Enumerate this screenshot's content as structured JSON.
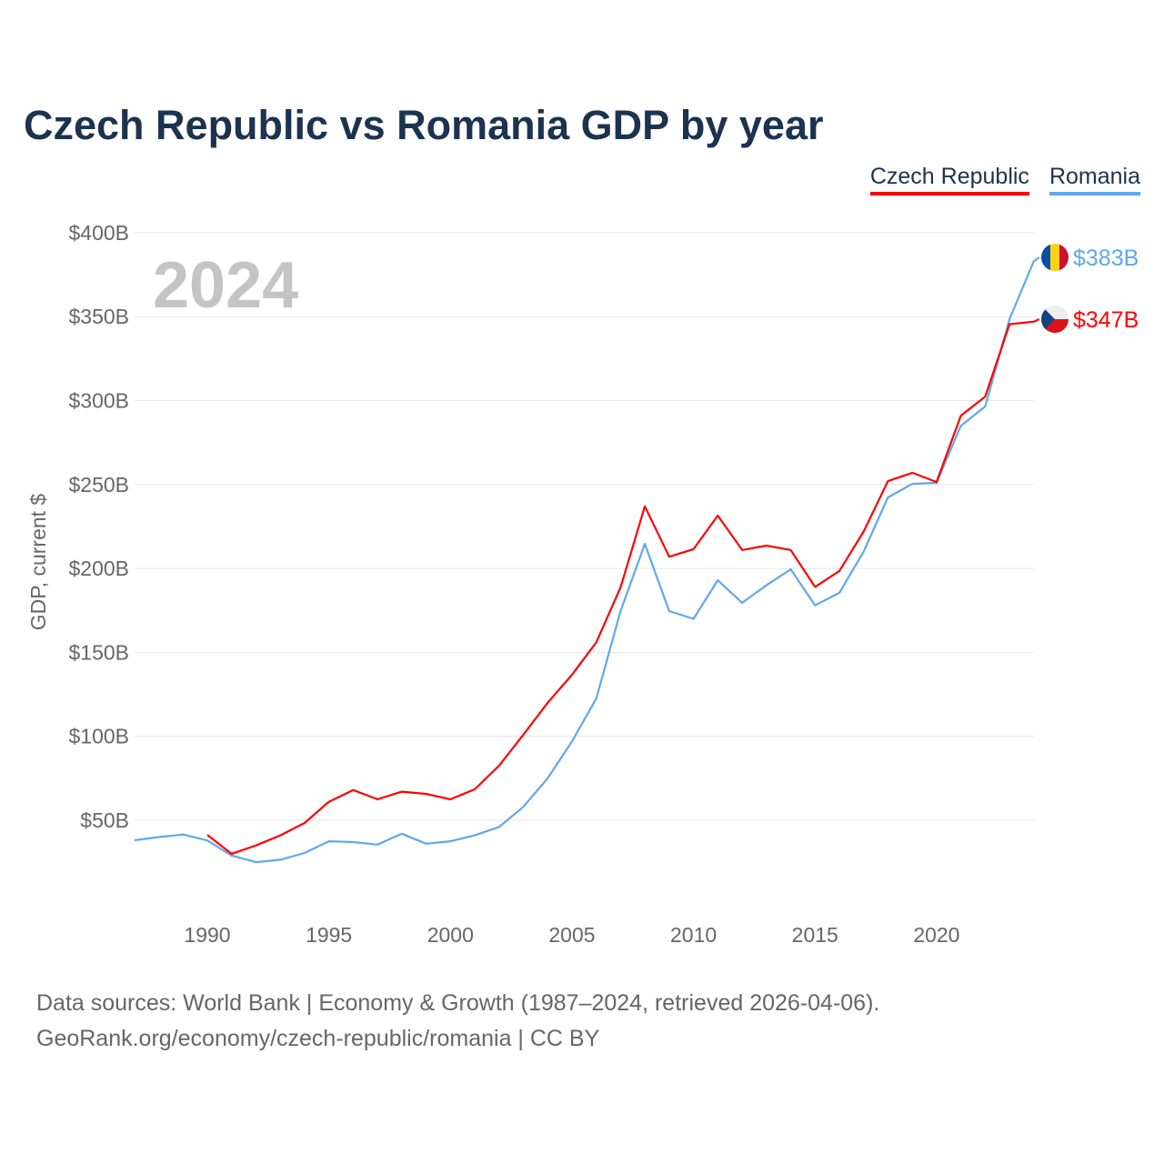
{
  "chart_data": {
    "type": "line",
    "title": "Czech Republic vs Romania GDP by year",
    "ylabel": "GDP, current $",
    "xlabel": "",
    "year_label": "2024",
    "ylim": [
      0,
      400
    ],
    "xlim": [
      1987,
      2024
    ],
    "yticks": [
      50,
      100,
      150,
      200,
      250,
      300,
      350,
      400
    ],
    "ytick_labels": [
      "$50B",
      "$100B",
      "$150B",
      "$200B",
      "$250B",
      "$300B",
      "$350B",
      "$400B"
    ],
    "xticks": [
      1990,
      1995,
      2000,
      2005,
      2010,
      2015,
      2020
    ],
    "xtick_labels": [
      "1990",
      "1995",
      "2000",
      "2005",
      "2010",
      "2015",
      "2020"
    ],
    "grid": true,
    "legend_position": "top-right",
    "series": [
      {
        "name": "Czech Republic",
        "color": "#ff0000",
        "end_label": "$347B",
        "flag": "czech-flag",
        "x": [
          1990,
          1991,
          1992,
          1993,
          1994,
          1995,
          1996,
          1997,
          1998,
          1999,
          2000,
          2001,
          2002,
          2003,
          2004,
          2005,
          2006,
          2007,
          2008,
          2009,
          2010,
          2011,
          2012,
          2013,
          2014,
          2015,
          2016,
          2017,
          2018,
          2019,
          2020,
          2021,
          2022,
          2023,
          2024
        ],
        "values": [
          41.3,
          30,
          35,
          41,
          48.4,
          61,
          68,
          62.5,
          67,
          65.7,
          62.5,
          68.4,
          82.5,
          101,
          120,
          136.7,
          156,
          188.7,
          237,
          207,
          211.5,
          231.5,
          211,
          213.6,
          211,
          189,
          198.5,
          222,
          252,
          257,
          251.5,
          291,
          302.4,
          345.5,
          347
        ]
      },
      {
        "name": "Romania",
        "color": "#5ea8ee",
        "end_label": "$383B",
        "flag": "romania-flag",
        "x": [
          1987,
          1988,
          1989,
          1990,
          1991,
          1992,
          1993,
          1994,
          1995,
          1996,
          1997,
          1998,
          1999,
          2000,
          2001,
          2002,
          2003,
          2004,
          2005,
          2006,
          2007,
          2008,
          2009,
          2010,
          2011,
          2012,
          2013,
          2014,
          2015,
          2016,
          2017,
          2018,
          2019,
          2020,
          2021,
          2022,
          2023,
          2024
        ],
        "values": [
          38.1,
          40,
          41.5,
          38,
          29,
          25,
          26.5,
          30.5,
          37.5,
          37,
          35.5,
          42,
          36,
          37.5,
          41,
          46,
          58,
          75,
          97,
          122.5,
          174.6,
          214.7,
          174.6,
          170,
          193,
          179.5,
          190,
          199.5,
          178,
          185.5,
          210,
          242.3,
          250.4,
          251,
          285,
          296.5,
          348.5,
          383
        ]
      }
    ]
  },
  "source": {
    "line1": "Data sources: World Bank | Economy & Growth (1987–2024, retrieved 2026-04-06).",
    "line2": "GeoRank.org/economy/czech-republic/romania | CC BY"
  }
}
